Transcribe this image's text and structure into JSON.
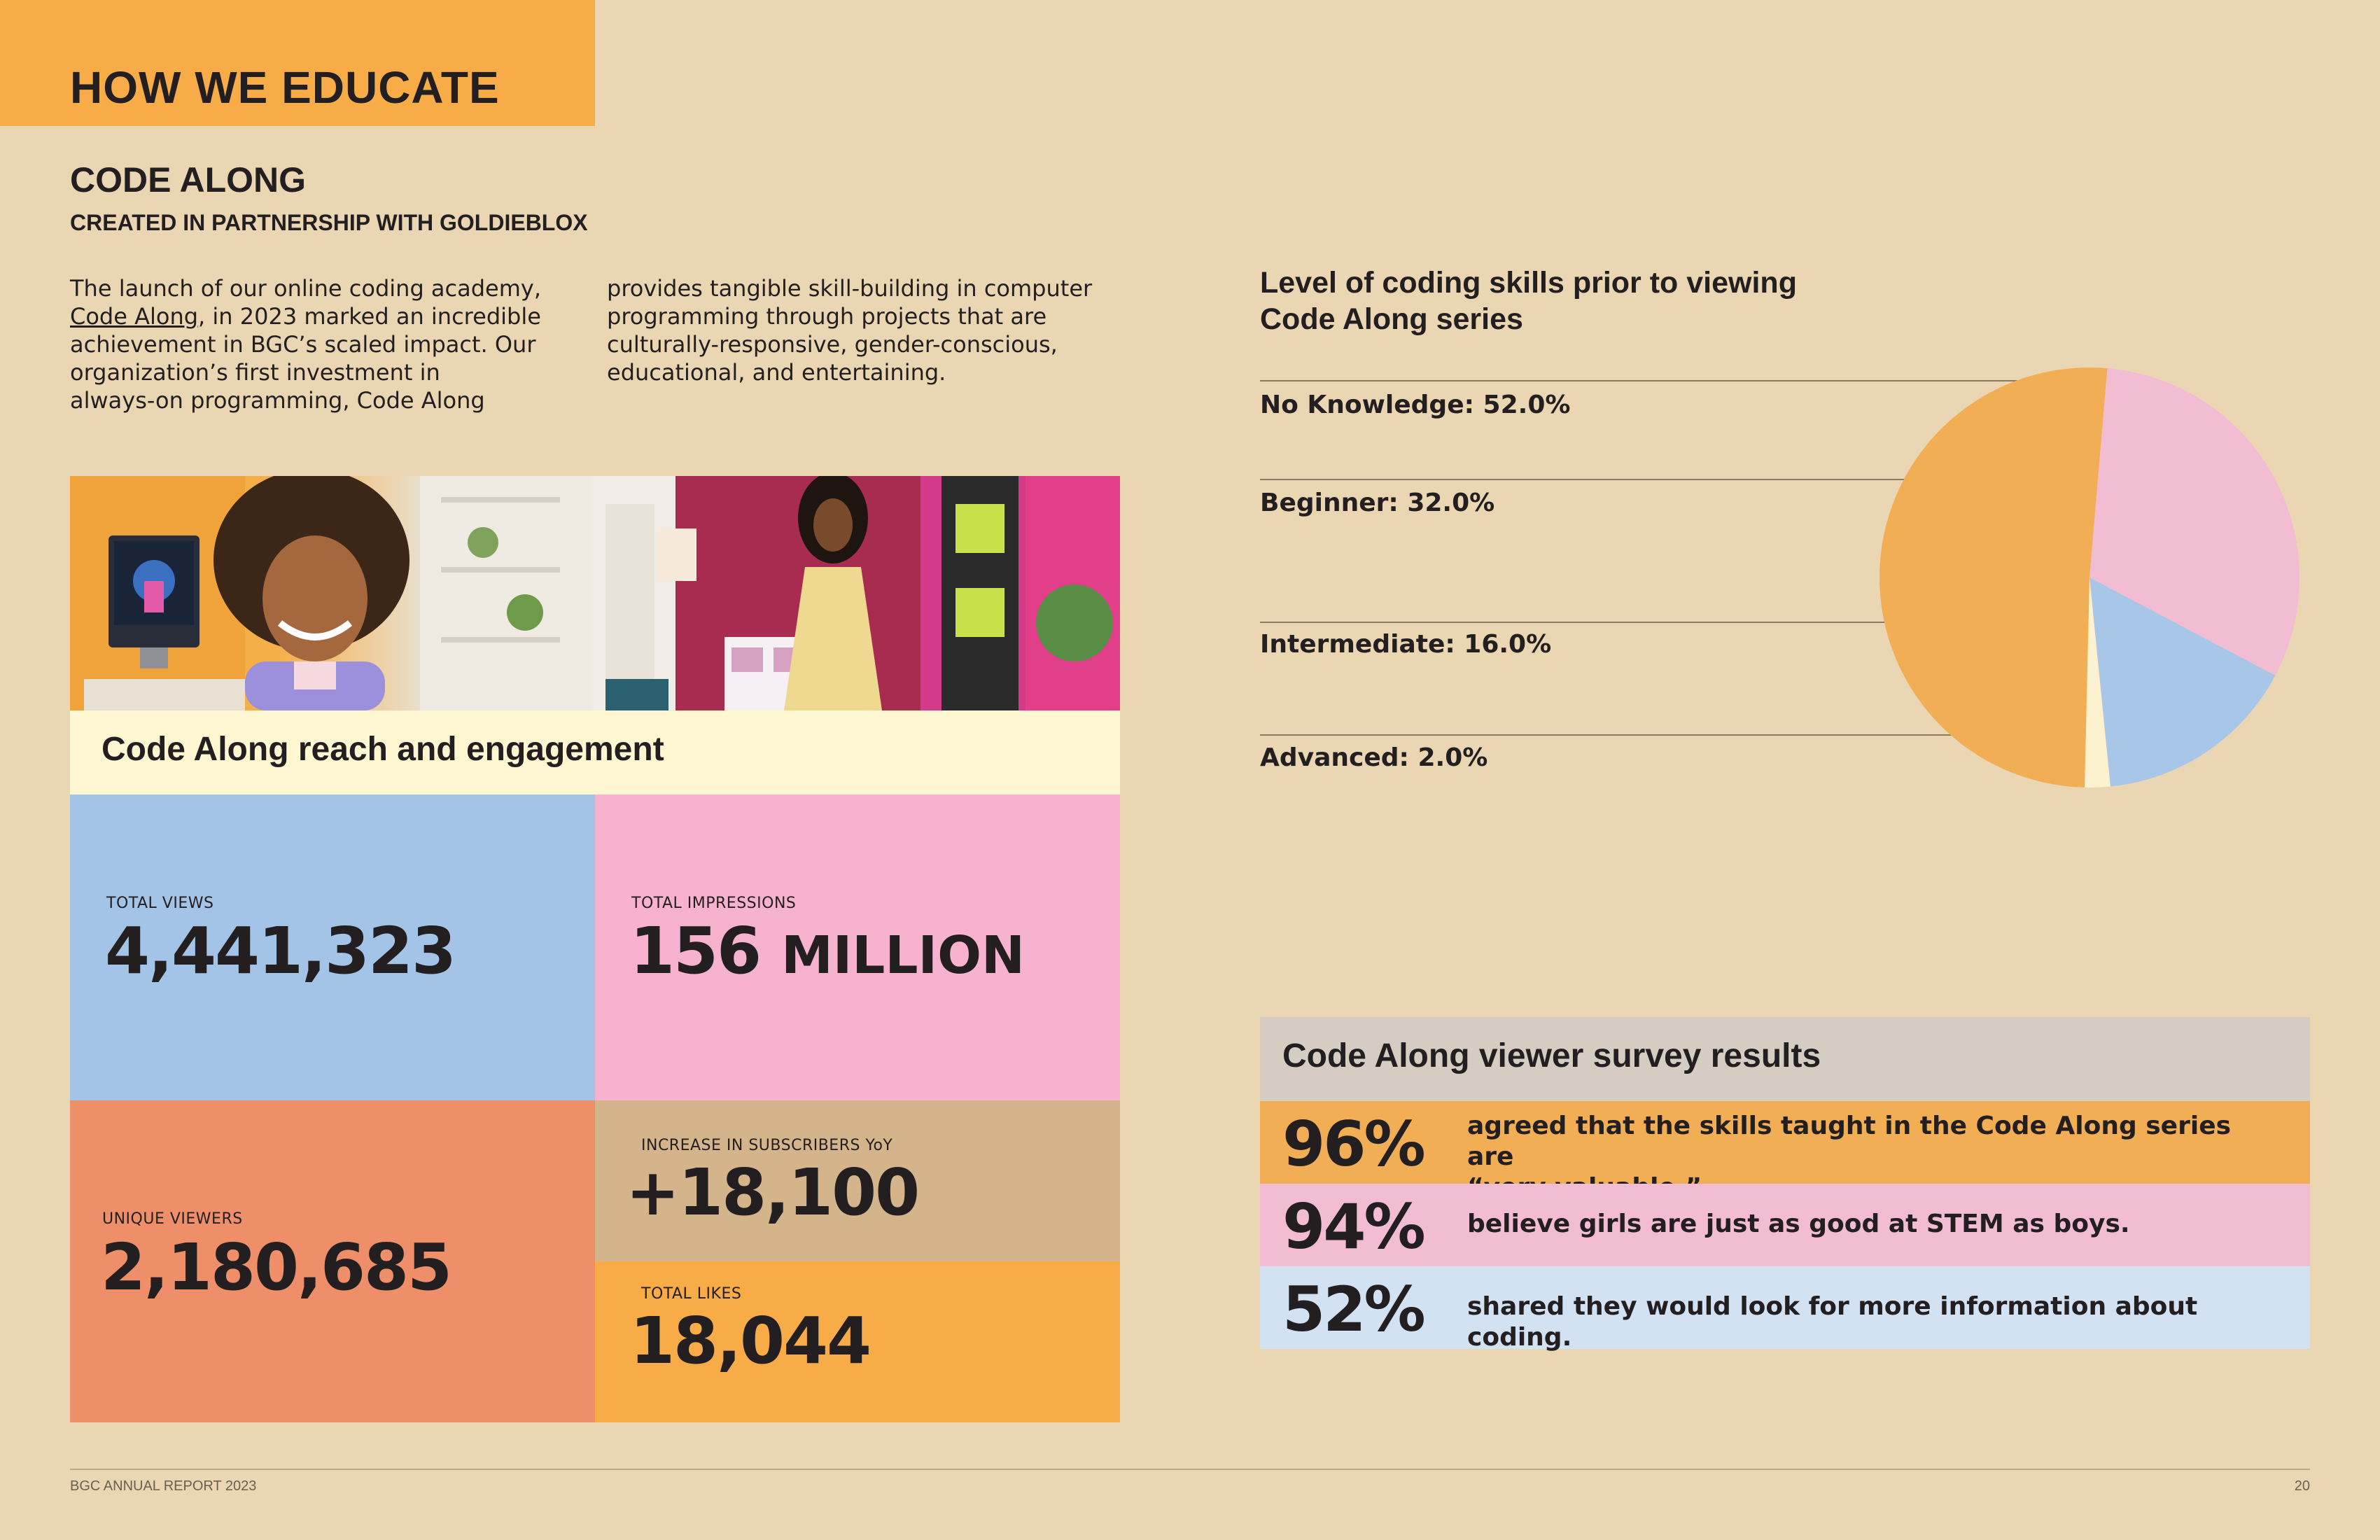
{
  "section_title": "HOW WE EDUCATE",
  "program": {
    "title": "CODE ALONG",
    "subtitle": "CREATED IN PARTNERSHIP WITH GOLDIEBLOX"
  },
  "intro": {
    "col1_line1": "The launch of our online coding academy,",
    "col1_link": "Code Along",
    "col1_rest_l2": ", in 2023 marked an incredible",
    "col1_line3": "achievement in BGC’s scaled impact. Our",
    "col1_line4": "organization’s first investment in",
    "col1_line5": "always-on programming, Code Along",
    "col2_line1": "provides tangible skill-building in computer",
    "col2_line2": "programming through projects that are",
    "col2_line3": "culturally-responsive, gender-conscious,",
    "col2_line4": "educational, and entertaining."
  },
  "reach": {
    "title": "Code Along reach and engagement",
    "tiles": [
      {
        "label": "TOTAL VIEWS",
        "value": "4,441,323",
        "color": "#a3c4e6"
      },
      {
        "label": "TOTAL IMPRESSIONS",
        "value": "156",
        "value_suffix": "MILLION",
        "color": "#f7b2cf"
      },
      {
        "label": "UNIQUE VIEWERS",
        "value": "2,180,685",
        "color": "#ee8f69"
      },
      {
        "label": "INCREASE IN SUBSCRIBERS YoY",
        "value": "+18,100",
        "color": "#d4b58b"
      },
      {
        "label": "TOTAL LIKES",
        "value": "18,044",
        "color": "#f8ac48"
      }
    ]
  },
  "pie_labels": {
    "l0": "No Knowledge: 52.0%",
    "l1": "Beginner: 32.0%",
    "l2": "Intermediate: 16.0%",
    "l3": "Advanced: 2.0%"
  },
  "chart_data": {
    "type": "pie",
    "title": "Level of coding skills prior to viewing Code Along series",
    "title_line1": "Level of coding skills prior to viewing",
    "title_line2": "Code Along series",
    "categories": [
      "No Knowledge",
      "Beginner",
      "Intermediate",
      "Advanced"
    ],
    "values": [
      52.0,
      32.0,
      16.0,
      2.0
    ],
    "colors": [
      "#f2ae55",
      "#f2bcd2",
      "#a8c6e8",
      "#fdf2cf"
    ],
    "legend_placement": "left"
  },
  "survey": {
    "title": "Code Along viewer survey results",
    "rows": [
      {
        "pct": "96%",
        "line1": "agreed that the skills taught in the Code Along series are",
        "line2": "“very valuable.”",
        "color": "#f2ae55"
      },
      {
        "pct": "94%",
        "line1": "believe girls are just as good at STEM as boys.",
        "line2": "",
        "color": "#f2bcd2"
      },
      {
        "pct": "52%",
        "line1": "shared they would look for more information about coding.",
        "line2": "",
        "color": "#d2e2f3"
      }
    ]
  },
  "footer": {
    "left": "BGC ANNUAL REPORT 2023",
    "page": "20"
  }
}
